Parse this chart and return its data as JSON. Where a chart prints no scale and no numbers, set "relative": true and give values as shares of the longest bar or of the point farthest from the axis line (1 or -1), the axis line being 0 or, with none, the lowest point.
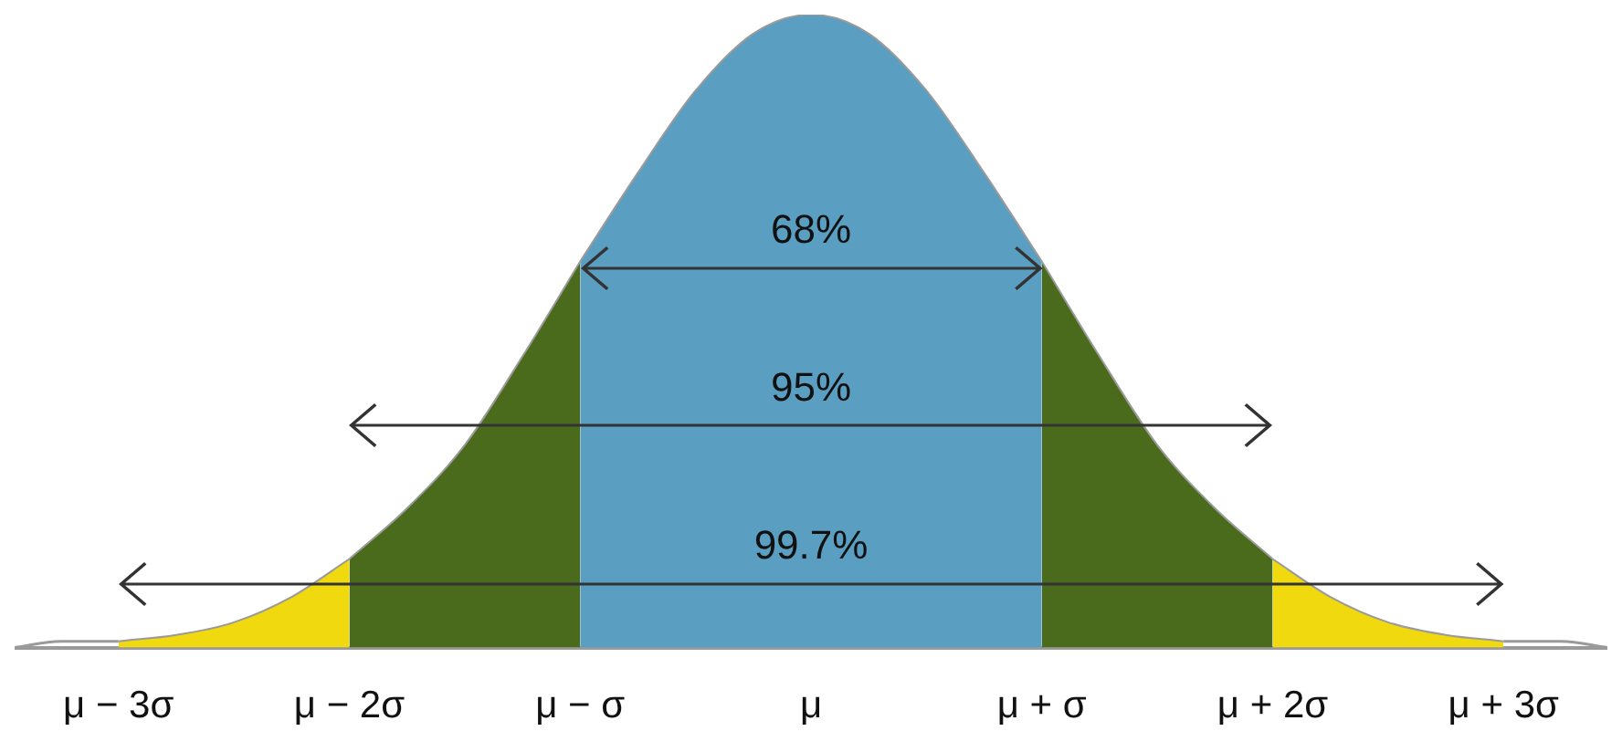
{
  "chart_data": {
    "type": "area",
    "relative": true,
    "grid": false,
    "legend": false,
    "xlim": [
      -3.45,
      3.45
    ],
    "xticks": [
      {
        "value": -3,
        "label": "μ − 3σ"
      },
      {
        "value": -2,
        "label": "μ − 2σ"
      },
      {
        "value": -1,
        "label": "μ − σ"
      },
      {
        "value": 0,
        "label": "μ"
      },
      {
        "value": 1,
        "label": "μ + σ"
      },
      {
        "value": 2,
        "label": "μ + 2σ"
      },
      {
        "value": 3,
        "label": "μ + 3σ"
      }
    ],
    "series": [
      {
        "type": "line",
        "color": "#9a9a9a",
        "x": [
          -3.45,
          -3.25,
          -3
        ],
        "values": [
          0.0,
          0.01,
          0.01
        ]
      },
      {
        "color": "#f0d90e",
        "x": [
          -3,
          -2.75,
          -2.5,
          -2.25,
          -2
        ],
        "values": [
          0.01,
          0.02,
          0.04,
          0.08,
          0.14
        ]
      },
      {
        "color": "#4b6b1c",
        "x": [
          -2,
          -1.75,
          -1.5,
          -1.25,
          -1
        ],
        "values": [
          0.14,
          0.22,
          0.32,
          0.46,
          0.61
        ]
      },
      {
        "color": "#5a9fc2",
        "x": [
          -1,
          -0.75,
          -0.5,
          -0.25,
          0,
          0.25,
          0.5,
          0.75,
          1
        ],
        "values": [
          0.61,
          0.75,
          0.88,
          0.97,
          1.0,
          0.97,
          0.88,
          0.75,
          0.61
        ]
      },
      {
        "color": "#4b6b1c",
        "x": [
          1,
          1.25,
          1.5,
          1.75,
          2
        ],
        "values": [
          0.61,
          0.46,
          0.32,
          0.22,
          0.14
        ]
      },
      {
        "color": "#f0d90e",
        "x": [
          2,
          2.25,
          2.5,
          2.75,
          3
        ],
        "values": [
          0.14,
          0.08,
          0.04,
          0.02,
          0.01
        ]
      },
      {
        "type": "line",
        "color": "#9a9a9a",
        "x": [
          3,
          3.25,
          3.45
        ],
        "values": [
          0.01,
          0.01,
          0.0
        ]
      }
    ],
    "annotations": [
      "68%",
      "95%",
      "99.7%"
    ]
  }
}
